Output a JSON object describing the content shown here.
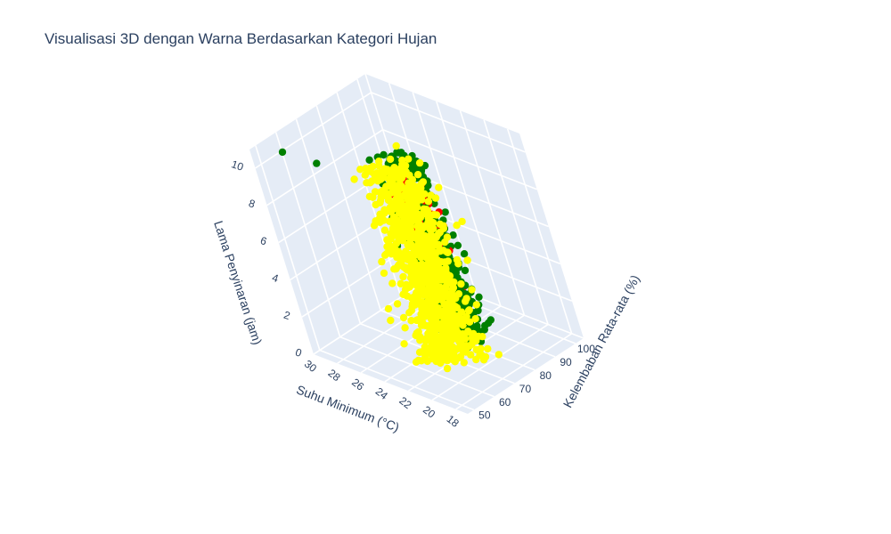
{
  "chart_data": {
    "type": "scatter",
    "title": "Visualisasi 3D dengan Warna Berdasarkan Kategori Hujan",
    "x_axis": {
      "label": "Suhu Minimum (°C)",
      "range": [
        17,
        30
      ],
      "ticks": [
        "30",
        "28",
        "26",
        "24",
        "22",
        "20",
        "18"
      ]
    },
    "y_axis": {
      "label": "Kelembaban Rata-rata (%)",
      "range": [
        47,
        104
      ],
      "ticks": [
        "50",
        "60",
        "70",
        "80",
        "90",
        "100"
      ]
    },
    "z_axis": {
      "label": "Lama Penyinaran (jam)",
      "range": [
        0,
        11
      ],
      "ticks": [
        "0",
        "2",
        "4",
        "6",
        "8",
        "10"
      ]
    },
    "legend": "none",
    "grid": true,
    "series": [
      {
        "color": "#ffff00",
        "clusters": [
          {
            "x": [
              20,
              25
            ],
            "y": [
              57,
              82
            ],
            "z": [
              0,
              10.3
            ],
            "count": 620
          },
          {
            "x": [
              19,
              24
            ],
            "y": [
              60,
              85
            ],
            "z": [
              0,
              9
            ],
            "count": 240
          }
        ]
      },
      {
        "color": "#008000",
        "clusters": [
          {
            "x": [
              23,
              27.5
            ],
            "y": [
              78,
              96
            ],
            "z": [
              0,
              9
            ],
            "count": 420
          },
          {
            "x": [
              21,
              25
            ],
            "y": [
              74,
              92
            ],
            "z": [
              0,
              5
            ],
            "count": 140
          }
        ],
        "outliers": [
          {
            "x": 29.5,
            "y": 58,
            "z": 10.2
          },
          {
            "x": 27.5,
            "y": 62,
            "z": 9.8
          }
        ]
      },
      {
        "color": "#ff0000",
        "clusters": [
          {
            "x": [
              23,
              26
            ],
            "y": [
              80,
              95
            ],
            "z": [
              0.5,
              7.5
            ],
            "count": 75
          },
          {
            "x": [
              22,
              25
            ],
            "y": [
              68,
              84
            ],
            "z": [
              6,
              9
            ],
            "count": 12
          }
        ]
      }
    ]
  }
}
